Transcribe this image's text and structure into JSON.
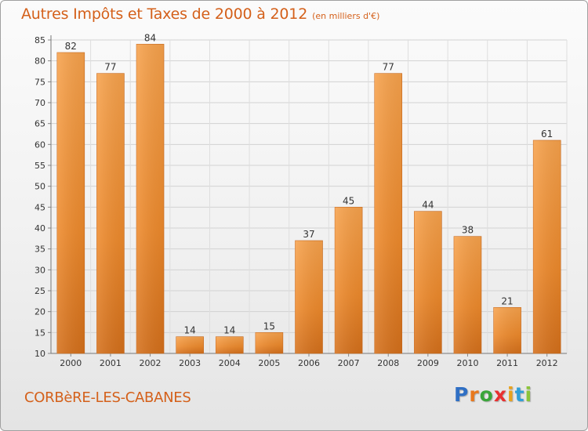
{
  "header": {
    "title": "Autres Impôts et Taxes de 2000 à 2012",
    "subtitle": "(en milliers d'€)"
  },
  "footer": {
    "commune": "CORBèRE-LES-CABANES",
    "logo_letters": [
      "P",
      "r",
      "o",
      "x",
      "i",
      "t",
      "i"
    ],
    "logo_colors": [
      "#2f6fc4",
      "#e8781e",
      "#3aa63a",
      "#e83030",
      "#e8a21e",
      "#2f9fd8",
      "#8bc43a"
    ]
  },
  "chart_data": {
    "type": "bar",
    "categories": [
      "2000",
      "2001",
      "2002",
      "2003",
      "2004",
      "2005",
      "2006",
      "2007",
      "2008",
      "2009",
      "2010",
      "2011",
      "2012"
    ],
    "values": [
      82,
      77,
      84,
      14,
      14,
      15,
      37,
      45,
      77,
      44,
      38,
      21,
      61
    ],
    "title": "Autres Impôts et Taxes de 2000 à 2012",
    "ylim": [
      10,
      85
    ],
    "yticks": [
      10,
      15,
      20,
      25,
      30,
      35,
      40,
      45,
      50,
      55,
      60,
      65,
      70,
      75,
      80,
      85
    ],
    "grid": true,
    "bar_color": "#f0922e",
    "text_color": "#d4601a"
  }
}
